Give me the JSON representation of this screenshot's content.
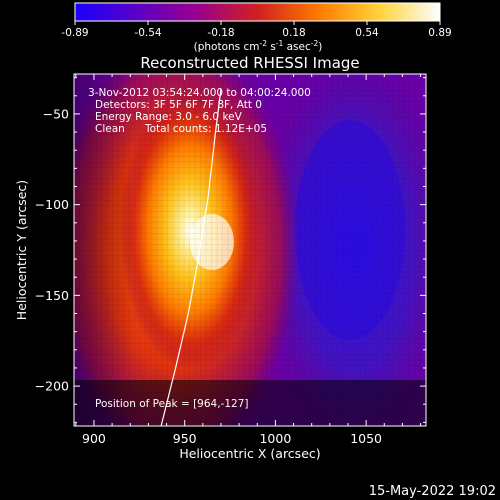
{
  "colorbar": {
    "ticks": [
      "-0.89",
      "-0.54",
      "-0.18",
      "0.18",
      "0.54",
      "0.89"
    ],
    "units_prefix": "(photons cm",
    "units_exp1": "-2",
    "units_mid": " s",
    "units_exp2": "-1",
    "units_mid2": " asec",
    "units_exp3": "-2",
    "units_suffix": ")",
    "stops": [
      "#1a00ff",
      "#5a00c8",
      "#9a0090",
      "#d02020",
      "#ff7a00",
      "#ffd23a",
      "#ffffff"
    ]
  },
  "chart_data": {
    "type": "heatmap",
    "title": "Reconstructed RHESSI Image",
    "xlabel": "Heliocentric X (arcsec)",
    "ylabel": "Heliocentric Y (arcsec)",
    "xlim": [
      889,
      1083
    ],
    "ylim": [
      -222,
      -28
    ],
    "x_ticks": [
      900,
      950,
      1000,
      1050
    ],
    "y_ticks": [
      -50,
      -100,
      -150,
      -200
    ],
    "x_tick_labels": [
      "900",
      "950",
      "1000",
      "1050"
    ],
    "y_tick_labels": [
      "−50",
      "−100",
      "−150",
      "−200"
    ],
    "peak": [
      964,
      -127
    ],
    "limb_curve": [
      [
        937,
        -222
      ],
      [
        945,
        -190
      ],
      [
        952,
        -160
      ],
      [
        958,
        -127
      ],
      [
        963,
        -95
      ],
      [
        967,
        -60
      ],
      [
        970,
        -36
      ]
    ],
    "annotations": {
      "time": "3-Nov-2012 03:54:24.000 to 04:00:24.000",
      "detectors": "Detectors: 3F 5F 6F 7F 8F, Att 0",
      "energy": "Energy Range: 3.0 - 6.0 keV",
      "method": "Clean",
      "counts": "Total counts: 1.12E+05",
      "peak_label": "Position of Peak = [964,-127]"
    }
  },
  "footer": {
    "date": "15-May-2022 19:02"
  }
}
